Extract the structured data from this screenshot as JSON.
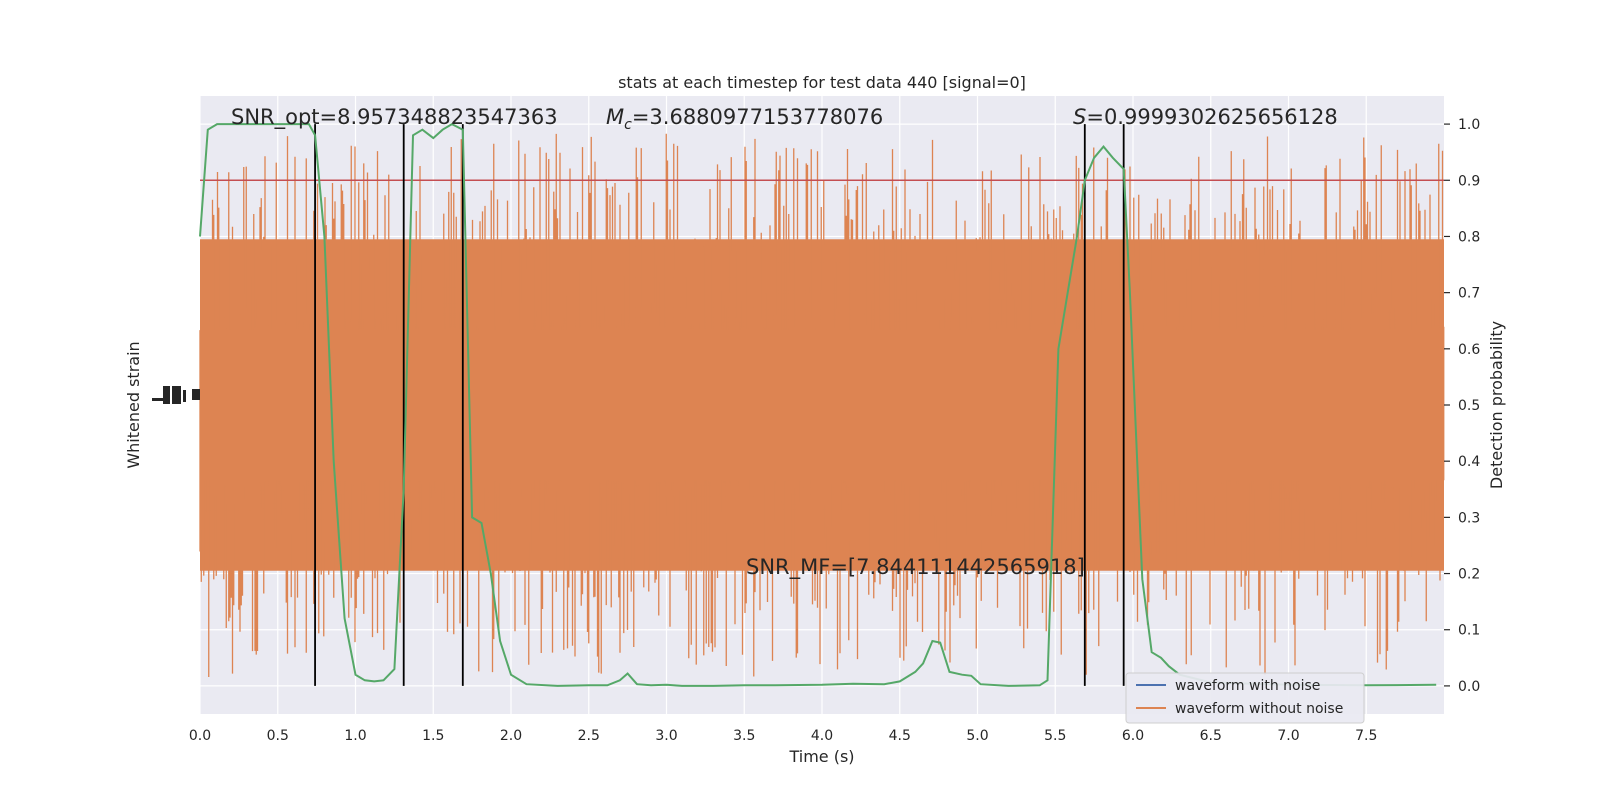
{
  "chart_data": {
    "type": "line",
    "title": "stats at each timestep for test data 440 [signal=0]",
    "xlabel": "Time (s)",
    "ylabel_left": "Whitened strain",
    "ylabel_right": "Detection probability",
    "xlim": [
      0.0,
      8.0
    ],
    "ylim_right": [
      -0.05,
      1.05
    ],
    "x_ticks": [
      "0.0",
      "0.5",
      "1.0",
      "1.5",
      "2.0",
      "2.5",
      "3.0",
      "3.5",
      "4.0",
      "4.5",
      "5.0",
      "5.5",
      "6.0",
      "6.5",
      "7.0",
      "7.5"
    ],
    "right_ticks": [
      "0.0",
      "0.1",
      "0.2",
      "0.3",
      "0.4",
      "0.5",
      "0.6",
      "0.7",
      "0.8",
      "0.9",
      "1.0"
    ],
    "threshold": 0.9,
    "grid": true,
    "colors": {
      "background": "#eaeaf2",
      "grid": "#ffffff",
      "noise": "#dd8452",
      "clean": "#4c72b0",
      "probability": "#55a868",
      "threshold": "#c44e52",
      "vline": "#000000"
    },
    "annotations": {
      "snr_opt": "SNR_opt=8.957348823547363",
      "mc_symbol": "M",
      "mc_sub": "c",
      "mc_value": "=3.6880977153778076",
      "s_symbol": "S",
      "s_value": "=0.9999302625656128",
      "snr_mf": "SNR_MF=[7.844111442565918]"
    },
    "vlines": [
      0.74,
      1.31,
      1.69,
      5.69,
      5.94
    ],
    "legend": {
      "position": "lower-right",
      "entries": [
        "waveform with noise",
        "waveform without noise"
      ]
    },
    "series": [
      {
        "name": "Detection probability",
        "x": [
          0.0,
          0.05,
          0.11,
          0.2,
          0.3,
          0.4,
          0.5,
          0.6,
          0.7,
          0.74,
          0.8,
          0.86,
          0.93,
          1.0,
          1.06,
          1.12,
          1.18,
          1.25,
          1.31,
          1.37,
          1.43,
          1.5,
          1.56,
          1.62,
          1.69,
          1.75,
          1.81,
          1.87,
          1.93,
          2.0,
          2.1,
          2.3,
          2.5,
          2.62,
          2.7,
          2.75,
          2.81,
          2.9,
          3.0,
          3.1,
          3.3,
          3.5,
          3.7,
          4.0,
          4.2,
          4.4,
          4.5,
          4.6,
          4.65,
          4.71,
          4.76,
          4.82,
          4.9,
          4.96,
          5.02,
          5.2,
          5.4,
          5.45,
          5.52,
          5.58,
          5.64,
          5.69,
          5.75,
          5.81,
          5.87,
          5.94,
          5.98,
          6.06,
          6.12,
          6.18,
          6.23,
          6.3,
          6.5,
          7.0,
          7.5,
          7.95
        ],
        "values": [
          0.8,
          0.99,
          1.0,
          1.0,
          1.0,
          1.0,
          1.0,
          1.0,
          1.0,
          0.98,
          0.8,
          0.4,
          0.12,
          0.02,
          0.01,
          0.008,
          0.01,
          0.03,
          0.35,
          0.98,
          0.99,
          0.975,
          0.99,
          1.0,
          0.99,
          0.3,
          0.29,
          0.2,
          0.08,
          0.02,
          0.003,
          0.0,
          0.001,
          0.001,
          0.01,
          0.022,
          0.003,
          0.001,
          0.002,
          0.0,
          0.0,
          0.001,
          0.001,
          0.002,
          0.004,
          0.003,
          0.008,
          0.025,
          0.04,
          0.08,
          0.077,
          0.025,
          0.02,
          0.018,
          0.003,
          0.0,
          0.001,
          0.01,
          0.6,
          0.7,
          0.8,
          0.9,
          0.94,
          0.96,
          0.94,
          0.92,
          0.7,
          0.19,
          0.06,
          0.05,
          0.035,
          0.02,
          0.006,
          0.002,
          0.001,
          0.002
        ]
      },
      {
        "name": "waveform without noise",
        "description_only": false
      }
    ]
  }
}
